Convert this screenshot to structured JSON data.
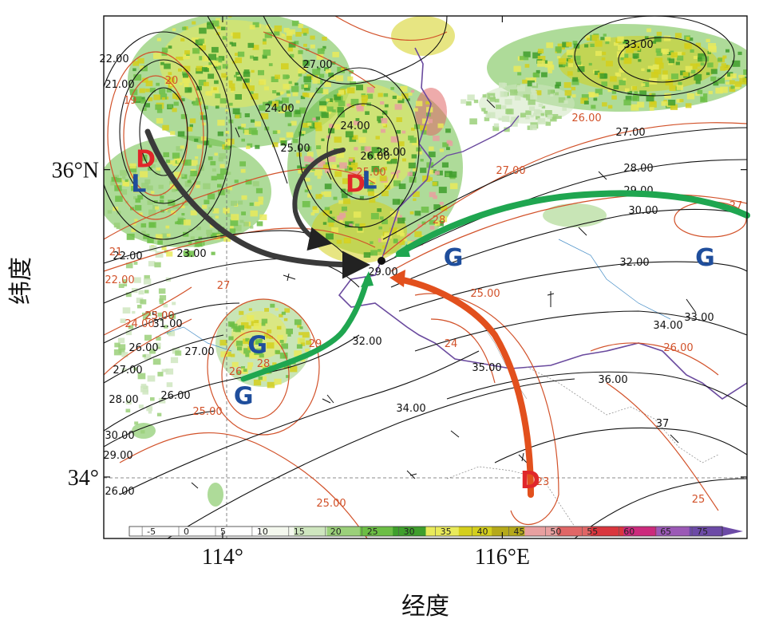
{
  "axes": {
    "x_ticks": [
      {
        "value": 114,
        "label": "114°"
      },
      {
        "value": 116,
        "label": "116°E"
      }
    ],
    "y_ticks": [
      {
        "value": 36,
        "label": "36°N"
      },
      {
        "value": 34,
        "label": "34°"
      }
    ],
    "xlabel": "经度",
    "ylabel": "纬度",
    "lon_range": [
      113.15,
      117.75
    ],
    "lat_range": [
      33.6,
      37.0
    ]
  },
  "colorbar": {
    "labels": [
      "-5",
      "0",
      "5",
      "10",
      "15",
      "20",
      "25",
      "30",
      "35",
      "40",
      "45",
      "50",
      "55",
      "60",
      "65",
      "75"
    ],
    "colors": [
      "#ffffff",
      "#ffffff",
      "#ffffff",
      "#ffffff",
      "#f4f8ee",
      "#cfe6bf",
      "#9bd07a",
      "#6cbe45",
      "#3f9e2c",
      "#e9ea5a",
      "#d4cf1c",
      "#b5a91a",
      "#e8a0a0",
      "#e06666",
      "#d9363e",
      "#cc2a7c",
      "#9b59b6",
      "#6c4aa6"
    ]
  },
  "systems": [
    {
      "label": "D",
      "color": "#e0262a",
      "lon": 113.45,
      "lat": 36.06
    },
    {
      "label": "L",
      "color": "#1f4e9c",
      "lon": 113.4,
      "lat": 35.9
    },
    {
      "label": "D",
      "color": "#e0262a",
      "lon": 114.95,
      "lat": 35.9
    },
    {
      "label": "L",
      "color": "#1f4e9c",
      "lon": 115.05,
      "lat": 35.92
    },
    {
      "label": "G",
      "color": "#1f4e9c",
      "lon": 115.65,
      "lat": 35.42
    },
    {
      "label": "G",
      "color": "#1f4e9c",
      "lon": 117.45,
      "lat": 35.42
    },
    {
      "label": "G",
      "color": "#1f4e9c",
      "lon": 114.25,
      "lat": 34.85
    },
    {
      "label": "G",
      "color": "#1f4e9c",
      "lon": 114.15,
      "lat": 34.52
    },
    {
      "label": "D",
      "color": "#e0262a",
      "lon": 116.2,
      "lat": 33.97
    }
  ],
  "black_contour_labels": [
    "21.00",
    "22.00",
    "22.00",
    "23.00",
    "24.00",
    "25.00",
    "26.00",
    "27.00",
    "27.00",
    "28.00",
    "29.00",
    "29.00",
    "30.00",
    "31.00",
    "32.00",
    "32.00",
    "33.00",
    "33.00",
    "34.00",
    "34.00",
    "35.00",
    "36.00",
    "37",
    "30.00",
    "29.00",
    "28.00",
    "27.00",
    "26.00",
    "25.00",
    "24.00",
    "28.00",
    "26.00",
    "27.00",
    "26.00"
  ],
  "red_contour_labels": [
    "19",
    "20",
    "21",
    "22.00",
    "23.00",
    "24.00",
    "25.00",
    "25.00",
    "25.00",
    "26",
    "26.00",
    "27.00",
    "27",
    "27",
    "28",
    "28",
    "29",
    "23",
    "24",
    "25.00",
    "26.00",
    "25"
  ]
}
